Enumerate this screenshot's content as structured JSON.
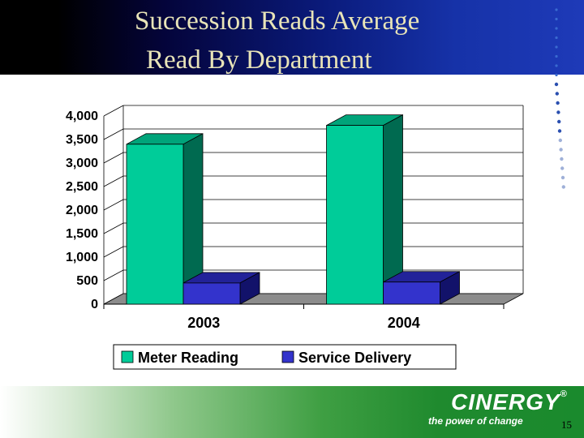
{
  "slide": {
    "title_line1": "Succession Reads Average",
    "title_line2": "Read  By Department",
    "logo": "CINERGY",
    "logo_mark": "®",
    "tagline": "the power of change",
    "page_number": "15"
  },
  "colors": {
    "meter_front": "#00cc99",
    "meter_side": "#006a50",
    "meter_top": "#00a47a",
    "service_front": "#3333cc",
    "service_side": "#12126a",
    "service_top": "#222299",
    "floor": "#8c8c8c"
  },
  "chart_data": {
    "type": "bar",
    "title": "",
    "xlabel": "",
    "ylabel": "",
    "categories": [
      "2003",
      "2004"
    ],
    "series": [
      {
        "name": "Meter Reading",
        "values": [
          3400,
          3800
        ]
      },
      {
        "name": "Service Delivery",
        "values": [
          450,
          470
        ]
      }
    ],
    "ylim": [
      0,
      4000
    ],
    "yticks": [
      "0",
      "500",
      "1,000",
      "1,500",
      "2,000",
      "2,500",
      "3,000",
      "3,500",
      "4,000"
    ],
    "grid": true,
    "legend_position": "bottom"
  }
}
